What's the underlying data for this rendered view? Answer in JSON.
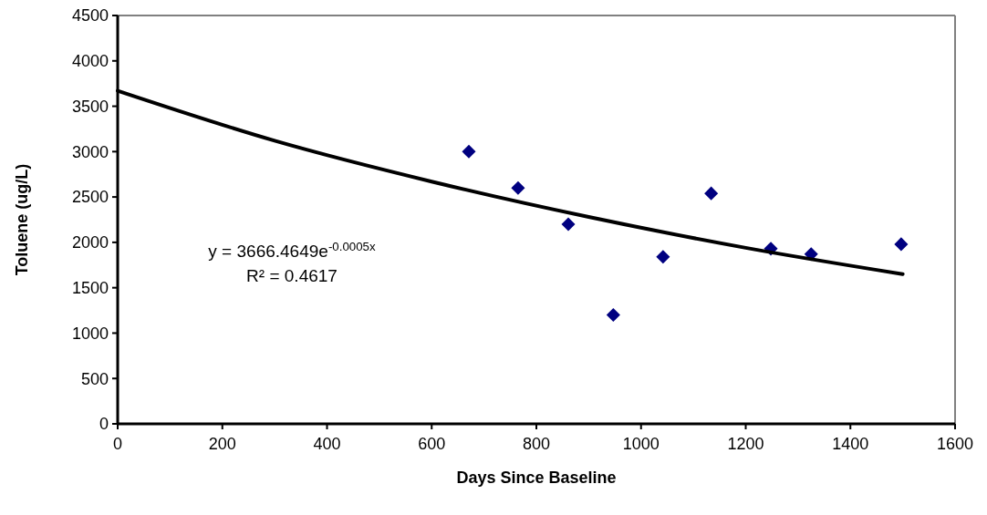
{
  "chart_data": {
    "type": "scatter",
    "xlabel": "Days Since Baseline",
    "ylabel": "Toluene (ug/L)",
    "xlim": [
      0,
      1600
    ],
    "xticks": [
      0,
      200,
      400,
      600,
      800,
      1000,
      1200,
      1400,
      1600
    ],
    "ylim": [
      0,
      4500
    ],
    "yticks": [
      0,
      500,
      1000,
      1500,
      2000,
      2500,
      3000,
      3500,
      4000,
      4500
    ],
    "grid": false,
    "series": [
      {
        "marker": "diamond",
        "color": "#000080",
        "x": [
          671,
          765,
          861,
          947,
          1042,
          1134,
          1248,
          1325,
          1497
        ],
        "values": [
          3000,
          2600,
          2200,
          1200,
          1840,
          2540,
          1930,
          1870,
          1980
        ]
      },
      {
        "type": "line",
        "color": "#000000",
        "line_style": "solid",
        "x": [
          0,
          300,
          600,
          900,
          1200,
          1500
        ],
        "values": [
          3670,
          3120,
          2670,
          2280,
          1940,
          1650
        ]
      }
    ],
    "annotations": [
      "y = 3666.4649e$^{-0.0005x}$",
      "R² = 0.4617"
    ]
  }
}
